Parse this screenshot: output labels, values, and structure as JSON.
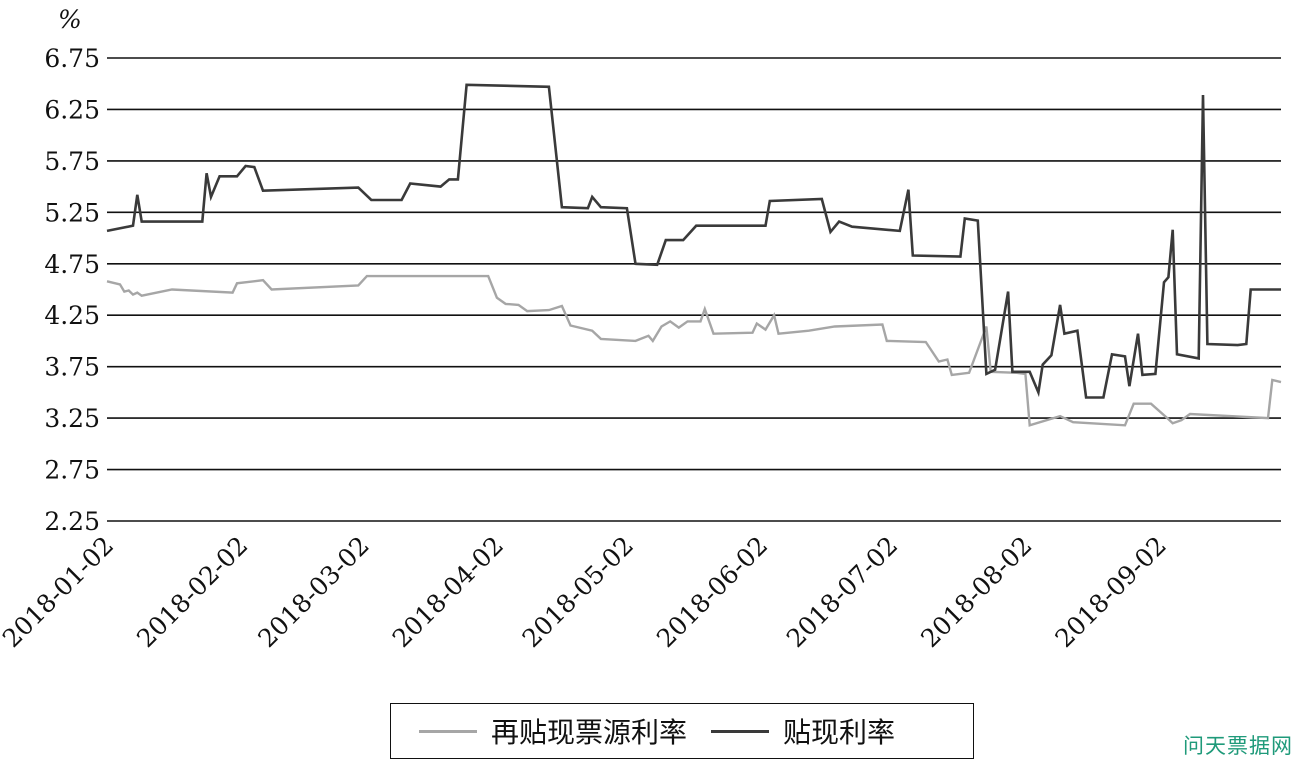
{
  "watermark": "问天票据网",
  "chart_data": {
    "type": "line",
    "unit_label": "%",
    "ylim": [
      2.25,
      6.75
    ],
    "yticks": [
      "2.25",
      "2.75",
      "3.25",
      "3.75",
      "4.25",
      "4.75",
      "5.25",
      "5.75",
      "6.25",
      "6.75"
    ],
    "xlim": [
      "2018-01-02",
      "2018-09-30"
    ],
    "xticks": [
      "2018-01-02",
      "2018-02-02",
      "2018-03-02",
      "2018-04-02",
      "2018-05-02",
      "2018-06-02",
      "2018-07-02",
      "2018-08-02",
      "2018-09-02"
    ],
    "grid": "horizontal",
    "legend_position": "bottom",
    "series": [
      {
        "name": "再贴现票源利率",
        "color": "#a6a6a6",
        "points": [
          [
            "2018-01-02",
            4.58
          ],
          [
            "2018-01-05",
            4.55
          ],
          [
            "2018-01-06",
            4.48
          ],
          [
            "2018-01-07",
            4.49
          ],
          [
            "2018-01-08",
            4.45
          ],
          [
            "2018-01-09",
            4.47
          ],
          [
            "2018-01-10",
            4.44
          ],
          [
            "2018-01-17",
            4.5
          ],
          [
            "2018-01-31",
            4.47
          ],
          [
            "2018-02-01",
            4.56
          ],
          [
            "2018-02-07",
            4.59
          ],
          [
            "2018-02-09",
            4.5
          ],
          [
            "2018-03-01",
            4.54
          ],
          [
            "2018-03-03",
            4.63
          ],
          [
            "2018-03-31",
            4.63
          ],
          [
            "2018-04-02",
            4.42
          ],
          [
            "2018-04-04",
            4.36
          ],
          [
            "2018-04-07",
            4.35
          ],
          [
            "2018-04-09",
            4.29
          ],
          [
            "2018-04-14",
            4.3
          ],
          [
            "2018-04-17",
            4.34
          ],
          [
            "2018-04-19",
            4.15
          ],
          [
            "2018-04-24",
            4.1
          ],
          [
            "2018-04-26",
            4.02
          ],
          [
            "2018-05-04",
            4.0
          ],
          [
            "2018-05-07",
            4.05
          ],
          [
            "2018-05-08",
            4.0
          ],
          [
            "2018-05-10",
            4.14
          ],
          [
            "2018-05-12",
            4.19
          ],
          [
            "2018-05-14",
            4.13
          ],
          [
            "2018-05-16",
            4.19
          ],
          [
            "2018-05-19",
            4.19
          ],
          [
            "2018-05-20",
            4.31
          ],
          [
            "2018-05-22",
            4.07
          ],
          [
            "2018-05-31",
            4.08
          ],
          [
            "2018-06-01",
            4.17
          ],
          [
            "2018-06-03",
            4.11
          ],
          [
            "2018-06-05",
            4.25
          ],
          [
            "2018-06-06",
            4.07
          ],
          [
            "2018-06-13",
            4.1
          ],
          [
            "2018-06-19",
            4.14
          ],
          [
            "2018-06-30",
            4.16
          ],
          [
            "2018-07-01",
            4.0
          ],
          [
            "2018-07-10",
            3.99
          ],
          [
            "2018-07-13",
            3.8
          ],
          [
            "2018-07-15",
            3.82
          ],
          [
            "2018-07-16",
            3.67
          ],
          [
            "2018-07-20",
            3.69
          ],
          [
            "2018-07-24",
            4.14
          ],
          [
            "2018-07-25",
            3.7
          ],
          [
            "2018-07-31",
            3.69
          ],
          [
            "2018-08-02",
            3.68
          ],
          [
            "2018-08-03",
            3.18
          ],
          [
            "2018-08-10",
            3.27
          ],
          [
            "2018-08-13",
            3.21
          ],
          [
            "2018-08-25",
            3.18
          ],
          [
            "2018-08-27",
            3.39
          ],
          [
            "2018-08-31",
            3.39
          ],
          [
            "2018-09-04",
            3.24
          ],
          [
            "2018-09-05",
            3.2
          ],
          [
            "2018-09-07",
            3.23
          ],
          [
            "2018-09-09",
            3.29
          ],
          [
            "2018-09-27",
            3.25
          ],
          [
            "2018-09-28",
            3.62
          ],
          [
            "2018-09-30",
            3.6
          ]
        ]
      },
      {
        "name": "贴现利率",
        "color": "#3a3a3a",
        "points": [
          [
            "2018-01-02",
            5.07
          ],
          [
            "2018-01-08",
            5.12
          ],
          [
            "2018-01-09",
            5.42
          ],
          [
            "2018-01-10",
            5.16
          ],
          [
            "2018-01-24",
            5.16
          ],
          [
            "2018-01-25",
            5.63
          ],
          [
            "2018-01-26",
            5.4
          ],
          [
            "2018-01-28",
            5.6
          ],
          [
            "2018-02-01",
            5.6
          ],
          [
            "2018-02-03",
            5.7
          ],
          [
            "2018-02-05",
            5.69
          ],
          [
            "2018-02-07",
            5.46
          ],
          [
            "2018-03-01",
            5.49
          ],
          [
            "2018-03-04",
            5.37
          ],
          [
            "2018-03-11",
            5.37
          ],
          [
            "2018-03-13",
            5.53
          ],
          [
            "2018-03-20",
            5.5
          ],
          [
            "2018-03-22",
            5.57
          ],
          [
            "2018-03-24",
            5.57
          ],
          [
            "2018-03-26",
            6.49
          ],
          [
            "2018-04-14",
            6.47
          ],
          [
            "2018-04-17",
            5.3
          ],
          [
            "2018-04-23",
            5.29
          ],
          [
            "2018-04-24",
            5.4
          ],
          [
            "2018-04-26",
            5.3
          ],
          [
            "2018-05-02",
            5.29
          ],
          [
            "2018-05-04",
            4.75
          ],
          [
            "2018-05-09",
            4.74
          ],
          [
            "2018-05-11",
            4.98
          ],
          [
            "2018-05-15",
            4.98
          ],
          [
            "2018-05-18",
            5.12
          ],
          [
            "2018-06-03",
            5.12
          ],
          [
            "2018-06-04",
            5.36
          ],
          [
            "2018-06-16",
            5.38
          ],
          [
            "2018-06-18",
            5.06
          ],
          [
            "2018-06-20",
            5.16
          ],
          [
            "2018-06-23",
            5.11
          ],
          [
            "2018-07-04",
            5.07
          ],
          [
            "2018-07-06",
            5.47
          ],
          [
            "2018-07-07",
            4.83
          ],
          [
            "2018-07-18",
            4.82
          ],
          [
            "2018-07-19",
            5.19
          ],
          [
            "2018-07-22",
            5.17
          ],
          [
            "2018-07-24",
            3.68
          ],
          [
            "2018-07-26",
            3.72
          ],
          [
            "2018-07-29",
            4.48
          ],
          [
            "2018-07-30",
            3.7
          ],
          [
            "2018-08-03",
            3.7
          ],
          [
            "2018-08-05",
            3.5
          ],
          [
            "2018-08-06",
            3.77
          ],
          [
            "2018-08-08",
            3.86
          ],
          [
            "2018-08-10",
            4.35
          ],
          [
            "2018-08-11",
            4.07
          ],
          [
            "2018-08-14",
            4.1
          ],
          [
            "2018-08-16",
            3.45
          ],
          [
            "2018-08-20",
            3.45
          ],
          [
            "2018-08-22",
            3.87
          ],
          [
            "2018-08-25",
            3.85
          ],
          [
            "2018-08-26",
            3.56
          ],
          [
            "2018-08-28",
            4.07
          ],
          [
            "2018-08-29",
            3.67
          ],
          [
            "2018-09-01",
            3.68
          ],
          [
            "2018-09-03",
            4.57
          ],
          [
            "2018-09-04",
            4.62
          ],
          [
            "2018-09-05",
            5.08
          ],
          [
            "2018-09-06",
            3.87
          ],
          [
            "2018-09-11",
            3.83
          ],
          [
            "2018-09-12",
            6.39
          ],
          [
            "2018-09-13",
            3.97
          ],
          [
            "2018-09-20",
            3.96
          ],
          [
            "2018-09-22",
            3.97
          ],
          [
            "2018-09-23",
            4.5
          ],
          [
            "2018-09-30",
            4.5
          ]
        ]
      }
    ]
  }
}
